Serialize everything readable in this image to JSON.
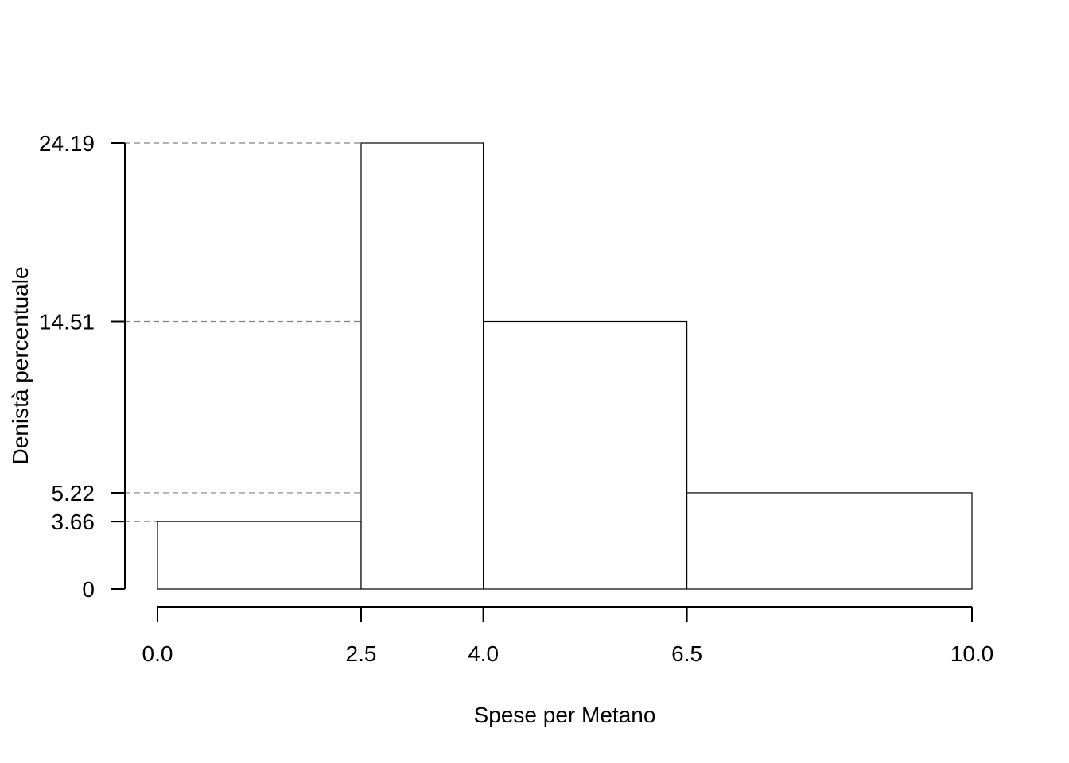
{
  "chart_data": {
    "type": "bar",
    "subtype": "histogram",
    "title": "",
    "xlabel": "Spese per Metano",
    "ylabel": "Denistà percentuale",
    "bins": [
      {
        "from": 0.0,
        "to": 2.5,
        "value": 3.66
      },
      {
        "from": 2.5,
        "to": 4.0,
        "value": 24.19
      },
      {
        "from": 4.0,
        "to": 6.5,
        "value": 14.51
      },
      {
        "from": 6.5,
        "to": 10.0,
        "value": 5.22
      }
    ],
    "xticks": [
      "0.0",
      "2.5",
      "4.0",
      "6.5",
      "10.0"
    ],
    "yticks": [
      "0",
      "3.66",
      "5.22",
      "14.51",
      "24.19"
    ],
    "xlim": [
      0,
      10
    ],
    "ylim": [
      0,
      24.19
    ],
    "reference_lines": "dashed grey horizontal lines from y-axis at each bar height",
    "grid": false,
    "legend": "none",
    "colors": {
      "bar_fill": "#ffffff",
      "bar_stroke": "#000000",
      "dash": "#808080"
    }
  }
}
